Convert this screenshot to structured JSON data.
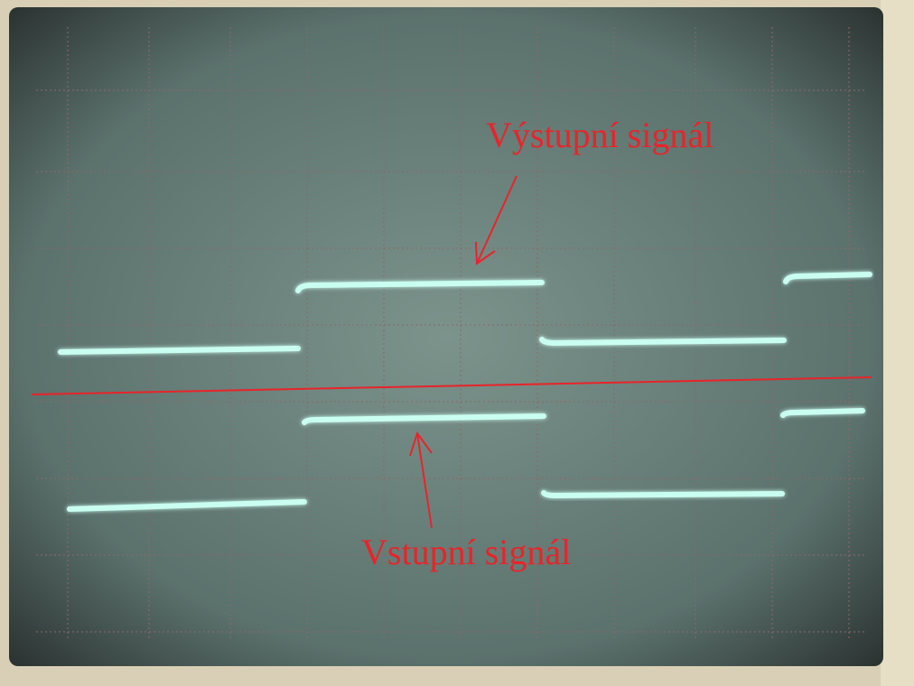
{
  "annotations": {
    "output": "Výstupní signál",
    "input": "Vstupní signál"
  }
}
